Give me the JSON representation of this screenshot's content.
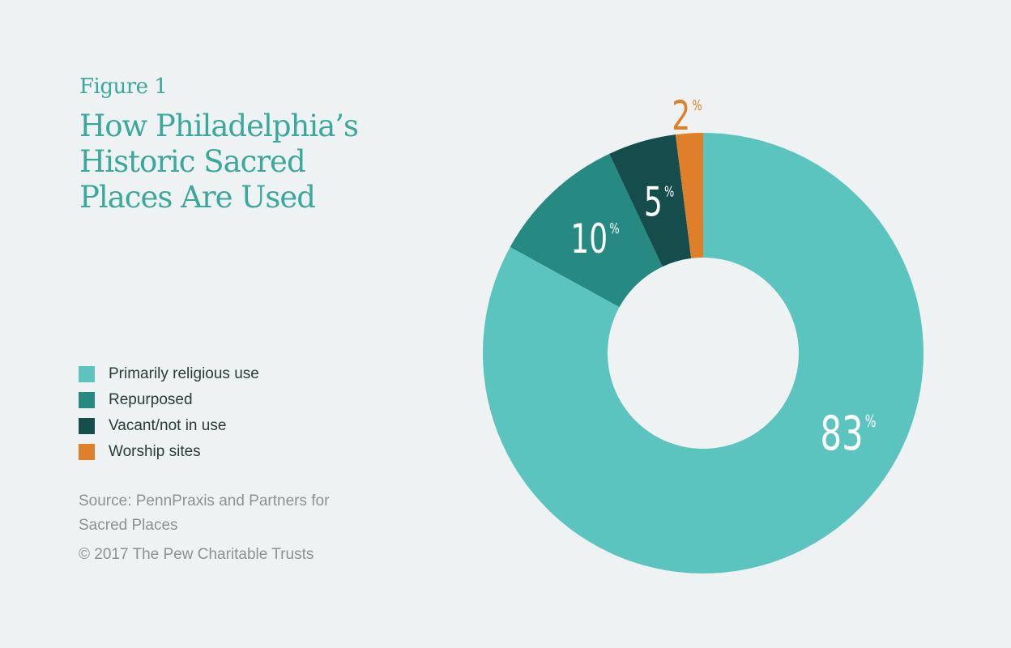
{
  "figure_label": "Figure 1",
  "title_lines": [
    "How Philadelphia’s",
    "Historic Sacred",
    "Places Are Used"
  ],
  "source": "Source: PennPraxis and Partners for Sacred Places",
  "copyright": "© 2017 The Pew Charitable Trusts",
  "colors": {
    "text_accent": "#3aa89a",
    "primarily_religious": "#5cc4bf",
    "repurposed": "#268a82",
    "vacant": "#154d4d",
    "worship_sites": "#e07f2a"
  },
  "chart_data": {
    "type": "pie",
    "variant": "donut",
    "legend_placement": "left",
    "unit": "%",
    "slices": [
      {
        "label": "Primarily religious use",
        "value": 83,
        "display": "83",
        "color": "#5cc4bf",
        "text_color": "#ffffff"
      },
      {
        "label": "Repurposed",
        "value": 10,
        "display": "10",
        "color": "#268a82",
        "text_color": "#ffffff"
      },
      {
        "label": "Vacant/not in use",
        "value": 5,
        "display": "5",
        "color": "#154d4d",
        "text_color": "#ffffff"
      },
      {
        "label": "Worship sites",
        "value": 2,
        "display": "2",
        "color": "#e07f2a",
        "text_color": "#e07f2a"
      }
    ]
  }
}
